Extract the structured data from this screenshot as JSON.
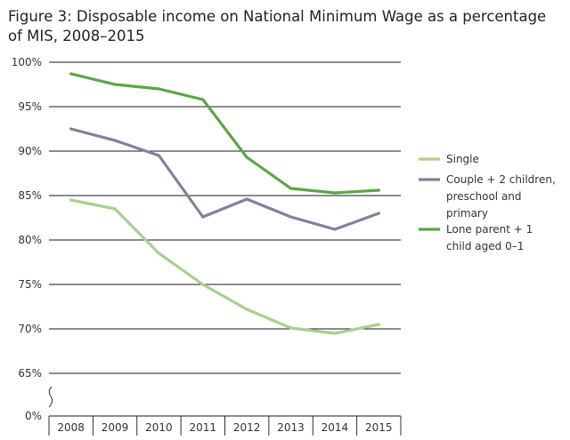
{
  "chart_data": {
    "type": "line",
    "title": "Figure 3: Disposable income on National Minimum Wage as a percentage of MIS, 2008–2015",
    "categories": [
      "2008",
      "2009",
      "2010",
      "2011",
      "2012",
      "2013",
      "2014",
      "2015"
    ],
    "y_ticks": [
      "0%",
      "65%",
      "70%",
      "75%",
      "80%",
      "85%",
      "90%",
      "95%",
      "100%"
    ],
    "ylim": [
      65,
      100
    ],
    "axis_break": true,
    "grid": true,
    "legend_position": "right",
    "series": [
      {
        "name": "Single",
        "color": "#a8d08d",
        "values": [
          84.5,
          83.5,
          78.5,
          75.0,
          72.2,
          70.1,
          69.5,
          70.5
        ]
      },
      {
        "name": "Couple + 2 children, preschool and primary",
        "legend_lines": [
          "Couple + 2 children,",
          "preschool and",
          "primary"
        ],
        "color": "#8b7d99",
        "values": [
          92.5,
          91.2,
          89.5,
          82.6,
          84.6,
          82.6,
          81.2,
          83.0
        ]
      },
      {
        "name": "Lone parent + 1 child aged 0–1",
        "legend_lines": [
          "Lone parent + 1",
          "child aged 0–1"
        ],
        "color": "#5aa646",
        "values": [
          98.7,
          97.5,
          97.0,
          95.8,
          89.3,
          85.8,
          85.3,
          85.6
        ]
      }
    ]
  }
}
